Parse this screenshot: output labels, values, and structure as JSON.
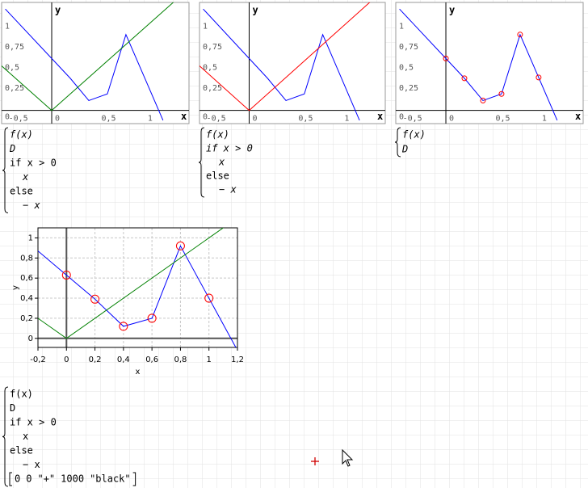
{
  "plots": [
    {
      "type": "line",
      "frame": "axes",
      "x_label": "x",
      "y_label": "y",
      "xlim": [
        -0.54,
        1.48
      ],
      "ylim": [
        -0.16,
        1.31
      ],
      "xticks": [
        {
          "value": -0.5,
          "label": "-0,5"
        },
        0,
        {
          "value": 0.5,
          "label": "0,5"
        },
        1
      ],
      "yticks": [
        0,
        {
          "value": 0.25,
          "label": "0,25"
        },
        {
          "value": 0.5,
          "label": "0,5"
        },
        {
          "value": 0.75,
          "label": "0,75"
        },
        1
      ],
      "series": [
        {
          "color": "#0000ff",
          "x": [
            -0.5,
            0,
            0.2,
            0.4,
            0.6,
            0.8,
            1,
            1.2
          ],
          "values": [
            1.23,
            0.63,
            0.39,
            0.12,
            0.2,
            0.92,
            0.4,
            -0.12
          ]
        },
        {
          "color": "#008000",
          "x": [
            -0.6,
            0,
            1.5
          ],
          "values": [
            0.6,
            0,
            1.5
          ]
        }
      ]
    },
    {
      "type": "line",
      "frame": "axes",
      "x_label": "x",
      "y_label": "y",
      "xlim": [
        -0.54,
        1.48
      ],
      "ylim": [
        -0.16,
        1.31
      ],
      "xticks": [
        {
          "value": -0.5,
          "label": "-0,5"
        },
        0,
        {
          "value": 0.5,
          "label": "0,5"
        },
        1
      ],
      "yticks": [
        0,
        {
          "value": 0.25,
          "label": "0,25"
        },
        {
          "value": 0.5,
          "label": "0,5"
        },
        {
          "value": 0.75,
          "label": "0,75"
        },
        1
      ],
      "series": [
        {
          "color": "#0000ff",
          "x": [
            -0.5,
            0,
            0.2,
            0.4,
            0.6,
            0.8,
            1,
            1.2
          ],
          "values": [
            1.23,
            0.63,
            0.39,
            0.12,
            0.2,
            0.92,
            0.4,
            -0.12
          ]
        },
        {
          "color": "#ff0000",
          "x": [
            -0.6,
            0,
            1.5
          ],
          "values": [
            0.6,
            0,
            1.5
          ]
        }
      ]
    },
    {
      "type": "line",
      "frame": "axes",
      "x_label": "x",
      "y_label": "y",
      "xlim": [
        -0.54,
        1.48
      ],
      "ylim": [
        -0.16,
        1.31
      ],
      "xticks": [
        {
          "value": -0.5,
          "label": "-0,5"
        },
        0,
        {
          "value": 0.5,
          "label": "0,5"
        },
        1
      ],
      "yticks": [
        0,
        {
          "value": 0.25,
          "label": "0,25"
        },
        {
          "value": 0.5,
          "label": "0,5"
        },
        {
          "value": 0.75,
          "label": "0,75"
        },
        1
      ],
      "series": [
        {
          "color": "#0000ff",
          "x": [
            -0.5,
            0,
            0.2,
            0.4,
            0.6,
            0.8,
            1,
            1.2
          ],
          "values": [
            1.23,
            0.63,
            0.39,
            0.12,
            0.2,
            0.92,
            0.4,
            -0.12
          ]
        },
        {
          "color": "#ff0000",
          "marker": "circle",
          "x": [
            0,
            0.2,
            0.4,
            0.6,
            0.8,
            1
          ],
          "values": [
            0.63,
            0.39,
            0.12,
            0.2,
            0.92,
            0.4
          ]
        }
      ]
    },
    {
      "type": "line",
      "frame": "box",
      "grid": true,
      "x_label": "x",
      "y_label": "y",
      "xlim": [
        -0.2,
        1.2
      ],
      "ylim": [
        -0.09,
        1.1
      ],
      "xticks": [
        {
          "value": -0.2,
          "label": "-0,2"
        },
        0,
        {
          "value": 0.2,
          "label": "0,2"
        },
        {
          "value": 0.4,
          "label": "0,4"
        },
        {
          "value": 0.6,
          "label": "0,6"
        },
        {
          "value": 0.8,
          "label": "0,8"
        },
        1,
        {
          "value": 1.2,
          "label": "1,2"
        }
      ],
      "yticks": [
        0,
        {
          "value": 0.2,
          "label": "0,2"
        },
        {
          "value": 0.4,
          "label": "0,4"
        },
        {
          "value": 0.6,
          "label": "0,6"
        },
        {
          "value": 0.8,
          "label": "0,8"
        },
        1
      ],
      "series": [
        {
          "color": "#0000ff",
          "x": [
            -0.5,
            0,
            0.2,
            0.4,
            0.6,
            0.8,
            1,
            1.2
          ],
          "values": [
            1.23,
            0.63,
            0.39,
            0.12,
            0.2,
            0.92,
            0.4,
            -0.12
          ]
        },
        {
          "color": "#008000",
          "x": [
            -0.6,
            0,
            1.5
          ],
          "values": [
            0.6,
            0,
            1.5
          ]
        },
        {
          "color": "#ff0000",
          "marker": "circle",
          "x": [
            0,
            0.2,
            0.4,
            0.6,
            0.8,
            1
          ],
          "values": [
            0.63,
            0.39,
            0.12,
            0.2,
            0.92,
            0.4
          ]
        }
      ]
    }
  ],
  "formulas": [
    {
      "lines": [
        "f(x)",
        "D",
        "if x > 0",
        "x",
        "else",
        "− x"
      ]
    },
    {
      "lines": [
        "f(x)",
        "if x > 0",
        "x",
        "else",
        "− x"
      ]
    },
    {
      "lines": [
        "f(x)",
        "D"
      ]
    },
    {
      "lines": [
        "f(x)",
        "D",
        "if x > 0",
        "x",
        "else",
        "− x"
      ],
      "row": [
        "0",
        "0",
        "\"+\"",
        "1000",
        "\"black\""
      ]
    }
  ]
}
